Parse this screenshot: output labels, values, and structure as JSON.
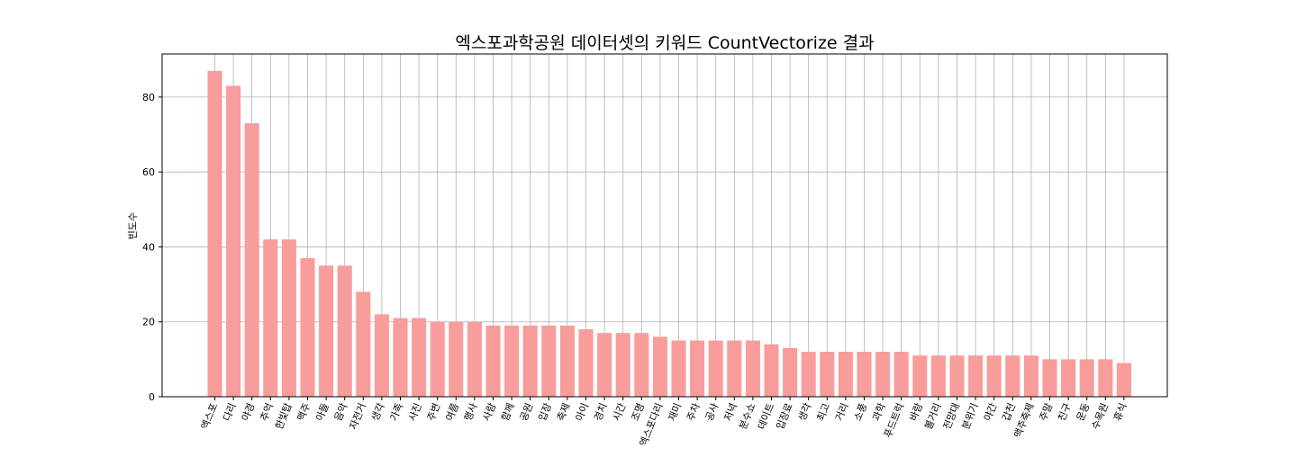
{
  "chart_data": {
    "type": "bar",
    "title": "엑스포과학공원 데이터셋의 키워드 CountVectorize 결과",
    "xlabel": "",
    "ylabel": "빈도수",
    "ylim": [
      0,
      91.5
    ],
    "yticks": [
      0,
      20,
      40,
      60,
      80
    ],
    "grid": true,
    "bar_color": "#f99c9c",
    "grid_color": "#b0b0b0",
    "categories": [
      "엑스포",
      "다리",
      "야경",
      "추억",
      "한빛탑",
      "맥주",
      "아들",
      "음악",
      "자전거",
      "생각",
      "가족",
      "사진",
      "주변",
      "여름",
      "행사",
      "사람",
      "함께",
      "공원",
      "입장",
      "축제",
      "아이",
      "경치",
      "시간",
      "조명",
      "엑스포다리",
      "재미",
      "주차",
      "공사",
      "저녁",
      "분수쇼",
      "데이트",
      "입장료",
      "생각",
      "최고",
      "거리",
      "소풍",
      "과학",
      "푸드트럭",
      "바람",
      "볼거리",
      "전망대",
      "분위기",
      "야간",
      "갑천",
      "맥주축제",
      "주말",
      "친구",
      "운동",
      "수목원",
      "휴식"
    ],
    "values": [
      87,
      83,
      73,
      42,
      42,
      37,
      35,
      35,
      28,
      22,
      21,
      21,
      20,
      20,
      20,
      19,
      19,
      19,
      19,
      19,
      18,
      17,
      17,
      17,
      16,
      15,
      15,
      15,
      15,
      15,
      14,
      13,
      12,
      12,
      12,
      12,
      12,
      12,
      11,
      11,
      11,
      11,
      11,
      11,
      11,
      10,
      10,
      10,
      10,
      9
    ]
  }
}
